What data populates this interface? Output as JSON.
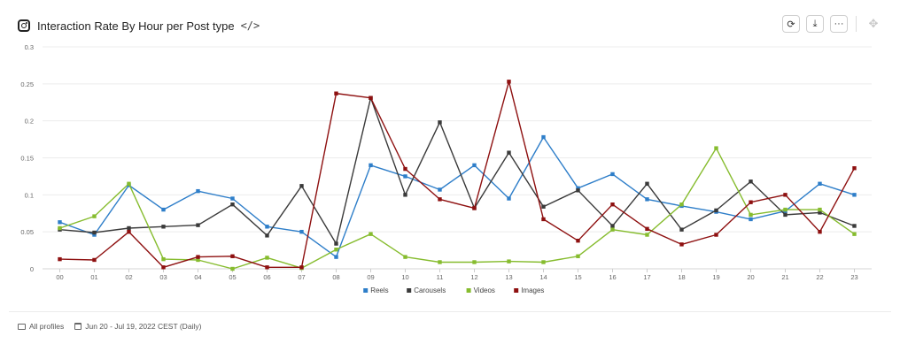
{
  "header": {
    "title": "Interaction Rate By Hour per Post type",
    "code_icon": "</>"
  },
  "icons": {
    "title_icon": "instagram-icon",
    "code": "code-icon",
    "refresh": "refresh-icon",
    "download": "download-icon",
    "more": "more-icon",
    "drag": "drag-icon"
  },
  "toolbar": {
    "refresh_glyph": "⟳",
    "download_glyph": "⤓",
    "more_glyph": "···",
    "drag_glyph": "✥"
  },
  "footer": {
    "profiles": "All profiles",
    "date_range": "Jun 20 - Jul 19, 2022 CEST (Daily)"
  },
  "chart_data": {
    "type": "line",
    "categories": [
      "00",
      "01",
      "02",
      "03",
      "04",
      "05",
      "06",
      "07",
      "08",
      "09",
      "10",
      "11",
      "12",
      "13",
      "14",
      "15",
      "16",
      "17",
      "18",
      "19",
      "20",
      "21",
      "22",
      "23"
    ],
    "ylim": [
      0,
      0.3
    ],
    "yticks": [
      "0",
      "0.05",
      "0.1",
      "0.15",
      "0.2",
      "0.25",
      "0.3"
    ],
    "ytick_values": [
      0,
      0.05,
      0.1,
      0.15,
      0.2,
      0.25,
      0.3
    ],
    "grid": true,
    "legend": "bottom",
    "series": [
      {
        "name": "Reels",
        "color": "#2e7ec9",
        "values": [
          0.063,
          0.046,
          0.113,
          0.08,
          0.105,
          0.095,
          0.057,
          0.05,
          0.016,
          0.14,
          0.125,
          0.107,
          0.14,
          0.095,
          0.178,
          0.109,
          0.128,
          0.094,
          0.085,
          0.077,
          0.067,
          0.078,
          0.115,
          0.1
        ]
      },
      {
        "name": "Carousels",
        "color": "#3a3a3a",
        "values": [
          0.053,
          0.049,
          0.055,
          0.057,
          0.059,
          0.087,
          0.045,
          0.112,
          0.034,
          0.231,
          0.1,
          0.198,
          0.082,
          0.157,
          0.084,
          0.106,
          0.058,
          0.115,
          0.053,
          0.079,
          0.118,
          0.073,
          0.076,
          0.058
        ]
      },
      {
        "name": "Videos",
        "color": "#86bc2e",
        "values": [
          0.055,
          0.071,
          0.115,
          0.013,
          0.012,
          0.0,
          0.015,
          0.001,
          0.026,
          0.047,
          0.016,
          0.009,
          0.009,
          0.01,
          0.009,
          0.017,
          0.053,
          0.046,
          0.087,
          0.163,
          0.073,
          0.08,
          0.08,
          0.047
        ]
      },
      {
        "name": "Images",
        "color": "#8e1010",
        "values": [
          0.013,
          0.012,
          0.05,
          0.002,
          0.016,
          0.017,
          0.002,
          0.002,
          0.237,
          0.231,
          0.135,
          0.094,
          0.082,
          0.253,
          0.067,
          0.038,
          0.087,
          0.054,
          0.033,
          0.046,
          0.09,
          0.1,
          0.05,
          0.136
        ]
      }
    ]
  }
}
